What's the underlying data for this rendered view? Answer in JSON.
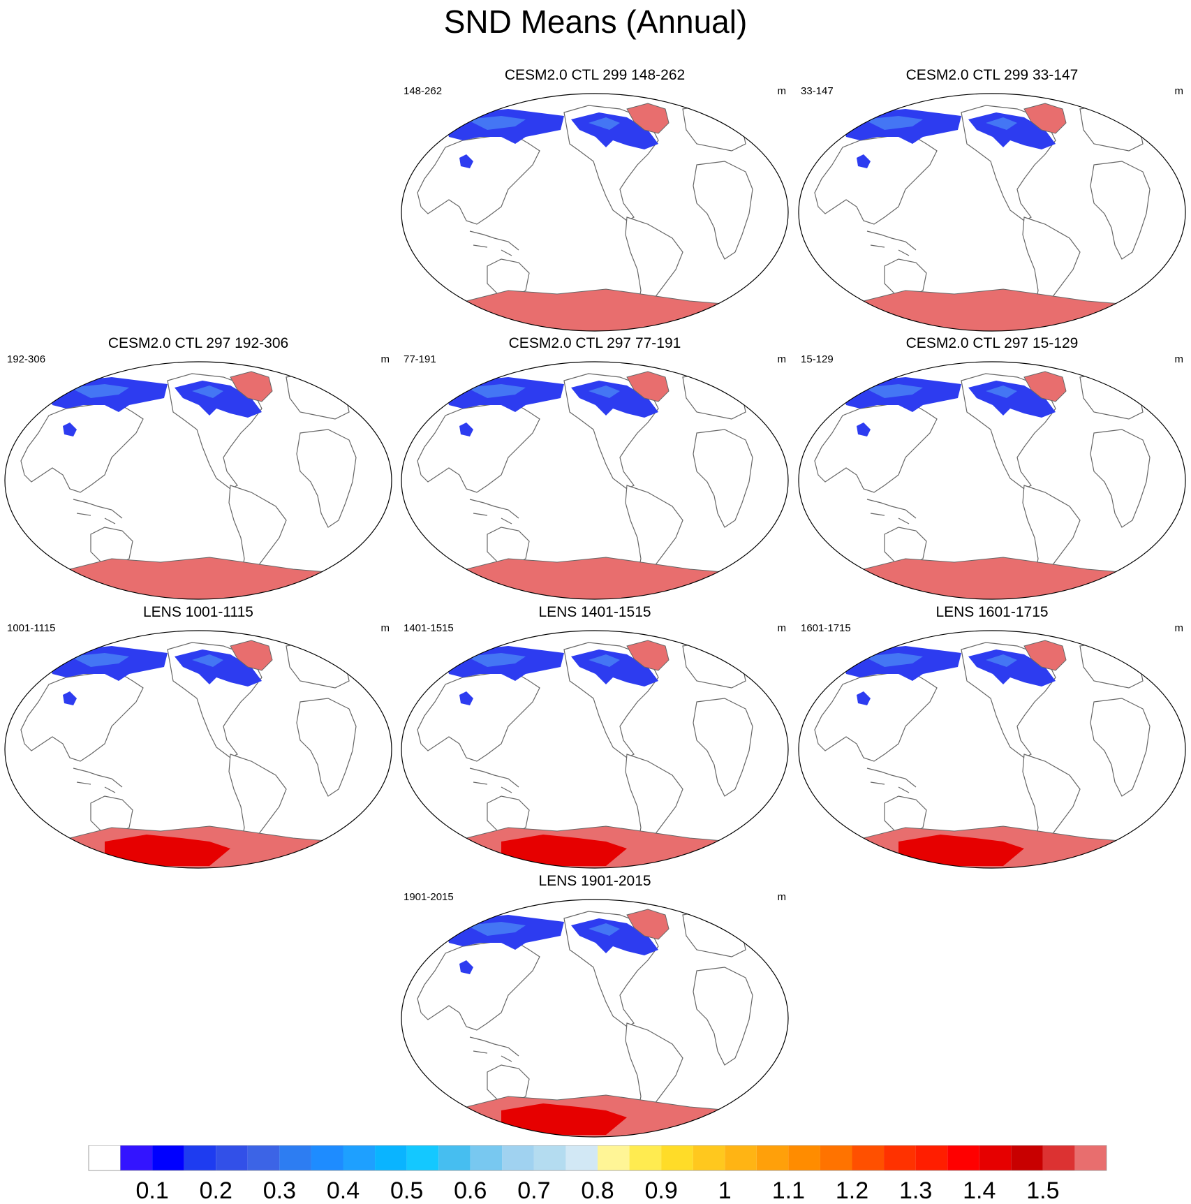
{
  "figure": {
    "title": "SND Means (Annual)"
  },
  "chart_data": {
    "type": "heatmap",
    "variable": "SND",
    "units": "m",
    "projection": "Robinson-like global map, Pacific-centered",
    "panels": [
      {
        "id": "p1",
        "title": "CESM2.0 CTL 299 148-262",
        "left_label": "148-262",
        "units": "m",
        "dataset": "CESM2"
      },
      {
        "id": "p2",
        "title": "CESM2.0 CTL 299 33-147",
        "left_label": "33-147",
        "units": "m",
        "dataset": "CESM2"
      },
      {
        "id": "p3",
        "title": "CESM2.0 CTL 297 192-306",
        "left_label": "192-306",
        "units": "m",
        "dataset": "CESM2"
      },
      {
        "id": "p4",
        "title": "CESM2.0 CTL 297 77-191",
        "left_label": "77-191",
        "units": "m",
        "dataset": "CESM2"
      },
      {
        "id": "p5",
        "title": "CESM2.0 CTL 297 15-129",
        "left_label": "15-129",
        "units": "m",
        "dataset": "CESM2"
      },
      {
        "id": "p6",
        "title": "LENS 1001-1115",
        "left_label": "1001-1115",
        "units": "m",
        "dataset": "LENS"
      },
      {
        "id": "p7",
        "title": "LENS 1401-1515",
        "left_label": "1401-1515",
        "units": "m",
        "dataset": "LENS"
      },
      {
        "id": "p8",
        "title": "LENS 1601-1715",
        "left_label": "1601-1715",
        "units": "m",
        "dataset": "LENS"
      },
      {
        "id": "p9",
        "title": "LENS 1901-2015",
        "left_label": "1901-2015",
        "units": "m",
        "dataset": "LENS"
      }
    ],
    "colorbar": {
      "levels": [
        "0.1",
        "0.2",
        "0.3",
        "0.4",
        "0.5",
        "0.6",
        "0.7",
        "0.8",
        "0.9",
        "1",
        "1.1",
        "1.2",
        "1.3",
        "1.4",
        "1.5"
      ],
      "colors": [
        "#ffffff",
        "#3314ff",
        "#0000ff",
        "#1e3cf0",
        "#3250e8",
        "#3c64e6",
        "#2d7df2",
        "#1e8cff",
        "#1ea0ff",
        "#0ab4ff",
        "#14c8ff",
        "#46bef0",
        "#78c8f0",
        "#a0d2f0",
        "#b4dcf0",
        "#d2e8f5",
        "#fff596",
        "#ffeb50",
        "#ffdc28",
        "#ffc81e",
        "#ffb414",
        "#ffa00a",
        "#ff8c00",
        "#ff7300",
        "#ff5000",
        "#ff3200",
        "#ff1e00",
        "#ff0000",
        "#e60000",
        "#c80000",
        "#dc3232",
        "#e86e6e"
      ]
    }
  },
  "colors": {
    "land_outline": "#666666",
    "antarctica_cesm": "#e86e6e",
    "antarctica_lens_core": "#e60000",
    "greenland": "#e86e6e",
    "snow_blue": "#2d3cf0",
    "snow_light": "#4f8ef5"
  }
}
